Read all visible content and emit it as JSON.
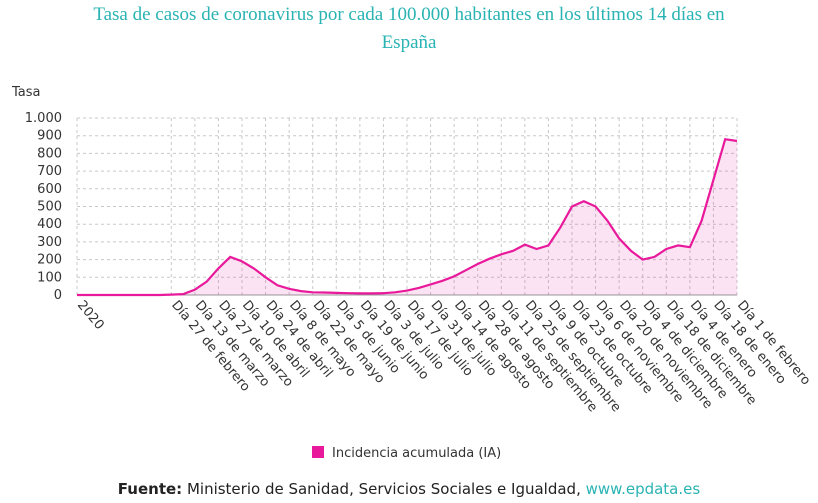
{
  "chart_data": {
    "type": "line",
    "title": "Tasa de casos de coronavirus por cada 100.000 habitantes en los últimos 14 días en España",
    "y_label": "Tasa",
    "categories": [
      "2020",
      null,
      null,
      null,
      null,
      null,
      null,
      null,
      "Día 27 de febrero",
      null,
      "Día 13 de marzo",
      null,
      "Día 27 de marzo",
      null,
      "Día 10 de abril",
      null,
      "Día 24 de abril",
      null,
      "Día 8 de mayo",
      null,
      "Día 22 de mayo",
      null,
      "Día 5 de junio",
      null,
      "Día 19 de junio",
      null,
      "Día 3 de julio",
      null,
      "Día 17 de julio",
      null,
      "Día 31 de julio",
      null,
      "Día 14 de agosto",
      null,
      "Día 28 de agosto",
      null,
      "Día 11 de septiembre",
      null,
      "Día 25 de septiembre",
      null,
      "Día 9 de octubre",
      null,
      "Día 23 de octubre",
      null,
      "Día 6 de noviembre",
      null,
      "Día 20 de noviembre",
      null,
      "Día 4 de diciembre",
      null,
      "Día 18 de diciembre",
      null,
      "Día 4 de enero",
      null,
      "Día 18 de enero",
      null,
      "Día 1 de febrero"
    ],
    "series": [
      {
        "name": "Incidencia acumulada (IA)",
        "color": "#e8199b",
        "values": [
          0,
          0,
          0,
          0,
          0,
          0,
          0,
          0,
          2,
          5,
          30,
          75,
          150,
          215,
          190,
          150,
          100,
          55,
          35,
          22,
          15,
          14,
          12,
          10,
          9,
          9,
          10,
          15,
          25,
          40,
          60,
          80,
          105,
          140,
          175,
          205,
          230,
          250,
          285,
          260,
          280,
          380,
          500,
          530,
          500,
          420,
          320,
          250,
          200,
          215,
          260,
          280,
          270,
          420,
          650,
          880,
          870
        ]
      }
    ],
    "ylim": [
      0,
      1000
    ],
    "yticks": [
      0,
      100,
      200,
      300,
      400,
      500,
      600,
      700,
      800,
      900,
      {
        "value": 1000,
        "label": "1.000"
      }
    ],
    "grid": true
  },
  "footer": {
    "source_label": "Fuente:",
    "source": "Ministerio de Sanidad, Servicios Sociales e Igualdad,",
    "link": "www.epdata.es"
  }
}
